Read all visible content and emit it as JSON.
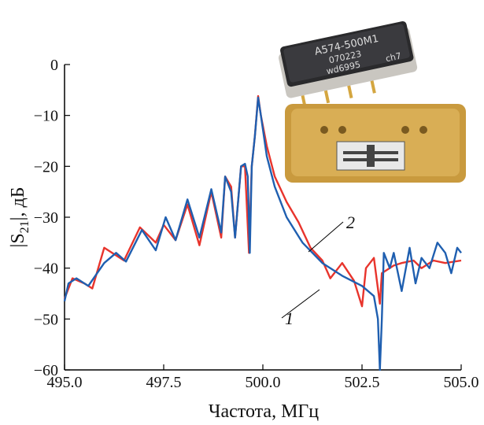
{
  "chart_data": {
    "type": "line",
    "x_label": "Частота, МГц",
    "y_label_parts": [
      "|S",
      "21",
      "|, дБ"
    ],
    "photo_text": [
      "A574-500M1",
      "070223",
      "wd6995",
      "ch7"
    ],
    "xlim": [
      495,
      505
    ],
    "xticks": [
      {
        "value": 495,
        "label": "495.0"
      },
      497.5,
      {
        "value": 500,
        "label": "500.0"
      },
      502.5,
      {
        "value": 505,
        "label": "505.0"
      }
    ],
    "ylim": [
      -60,
      0
    ],
    "yticks": [
      {
        "value": -60,
        "label": "−60"
      },
      {
        "value": -50,
        "label": "−50"
      },
      {
        "value": -40,
        "label": "−40"
      },
      {
        "value": -30,
        "label": "−30"
      },
      {
        "value": -20,
        "label": "−20"
      },
      {
        "value": -10,
        "label": "−10"
      },
      0
    ],
    "series": [
      {
        "name": "2",
        "color": "#e8342c",
        "x": [
          495,
          495.2,
          495.5,
          495.7,
          496.0,
          496.3,
          496.5,
          496.9,
          497.3,
          497.5,
          497.8,
          498.1,
          498.4,
          498.7,
          498.95,
          499.05,
          499.2,
          499.3,
          499.45,
          499.55,
          499.65,
          499.72,
          499.8,
          499.88,
          499.95,
          500.1,
          500.3,
          500.6,
          500.9,
          501.2,
          501.5,
          501.7,
          502.0,
          502.3,
          502.5,
          502.6,
          502.8,
          502.95,
          503.0,
          503.3,
          503.5,
          503.8,
          504.0,
          504.3,
          504.6,
          505.0
        ],
        "values": [
          -46,
          -42,
          -43,
          -44,
          -36,
          -37.5,
          -38.5,
          -32,
          -35,
          -31.5,
          -34.5,
          -27.5,
          -35.5,
          -25,
          -34,
          -22,
          -24,
          -34,
          -20,
          -20,
          -37,
          -20,
          -14,
          -6.2,
          -10,
          -16,
          -22,
          -27,
          -31,
          -36,
          -38.5,
          -42,
          -39,
          -42.5,
          -47.5,
          -40,
          -38,
          -47,
          -41,
          -39.5,
          -39,
          -38.5,
          -40,
          -38.5,
          -39,
          -38.5
        ]
      },
      {
        "name": "1",
        "color": "#1f5fb0",
        "x": [
          495,
          495.1,
          495.3,
          495.6,
          496.0,
          496.3,
          496.55,
          496.95,
          497.3,
          497.55,
          497.8,
          498.1,
          498.4,
          498.7,
          498.95,
          499.05,
          499.2,
          499.3,
          499.45,
          499.55,
          499.62,
          499.67,
          499.72,
          499.8,
          499.88,
          499.95,
          500.1,
          500.3,
          500.6,
          501.0,
          501.5,
          502.0,
          502.5,
          502.8,
          502.9,
          502.95,
          503.0,
          503.05,
          503.2,
          503.3,
          503.5,
          503.7,
          503.85,
          504.0,
          504.2,
          504.4,
          504.6,
          504.75,
          504.9,
          505.0
        ],
        "values": [
          -46.5,
          -43,
          -42,
          -43.5,
          -39,
          -37,
          -38.7,
          -32.5,
          -36.5,
          -30,
          -34.5,
          -26.5,
          -34,
          -24.5,
          -33,
          -22,
          -25,
          -34,
          -20,
          -19.5,
          -22,
          -37,
          -20,
          -14,
          -6.5,
          -10,
          -18,
          -24,
          -30,
          -35,
          -39,
          -41.5,
          -43.5,
          -45.5,
          -50,
          -60,
          -50,
          -37,
          -40,
          -37,
          -44.5,
          -36,
          -43,
          -38,
          -40,
          -35,
          -37,
          -41,
          -36,
          -37
        ]
      }
    ]
  }
}
